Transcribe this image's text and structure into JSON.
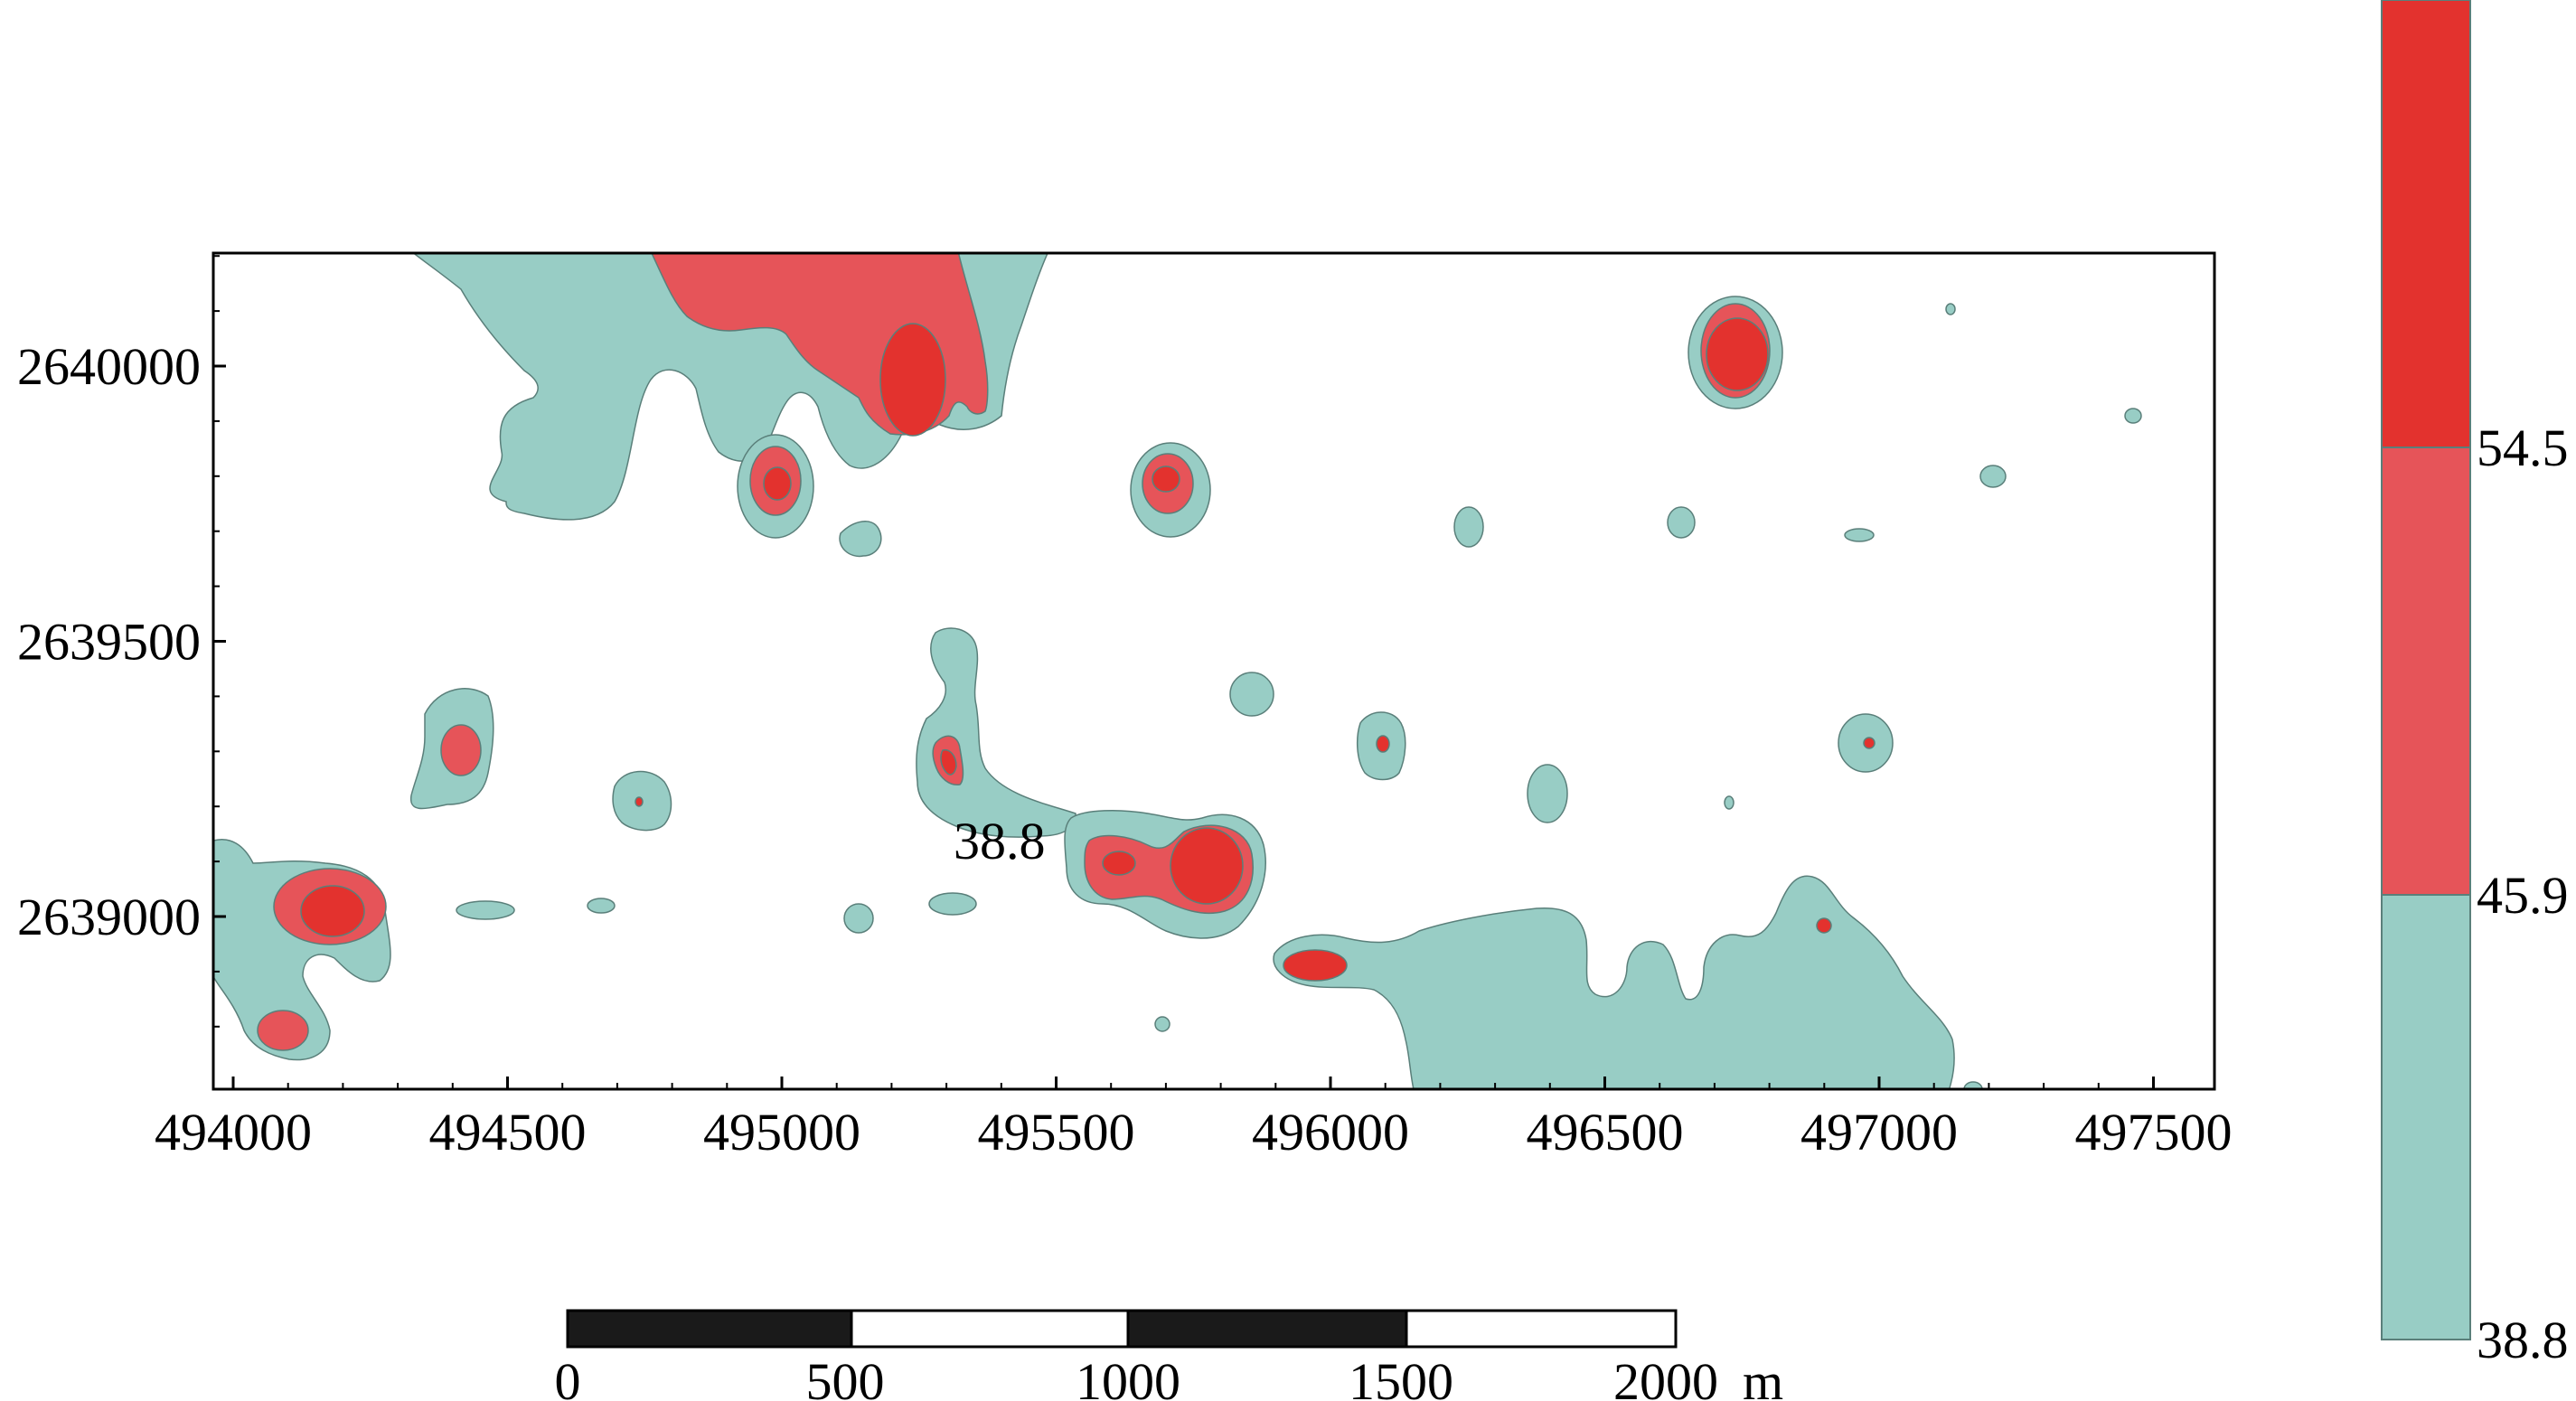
{
  "map": {
    "x_axis": {
      "ticks": [
        "494000",
        "494500",
        "495000",
        "495500",
        "496000",
        "496500",
        "497000",
        "497500"
      ]
    },
    "y_axis": {
      "ticks": [
        "2640000",
        "2639500",
        "2639000"
      ]
    },
    "contour_label": "38.8",
    "colors": {
      "low": "#98cdc5",
      "mid": "#e65459",
      "high": "#e3322e",
      "outline": "#5a7f7a",
      "frame": "#000000"
    }
  },
  "legend": {
    "levels": [
      "54.5",
      "45.9",
      "38.8"
    ],
    "colors": [
      "#e3322e",
      "#e65459",
      "#98cdc5"
    ]
  },
  "scale_bar": {
    "labels": [
      "0",
      "500",
      "1000",
      "1500",
      "2000"
    ],
    "unit": "m"
  }
}
